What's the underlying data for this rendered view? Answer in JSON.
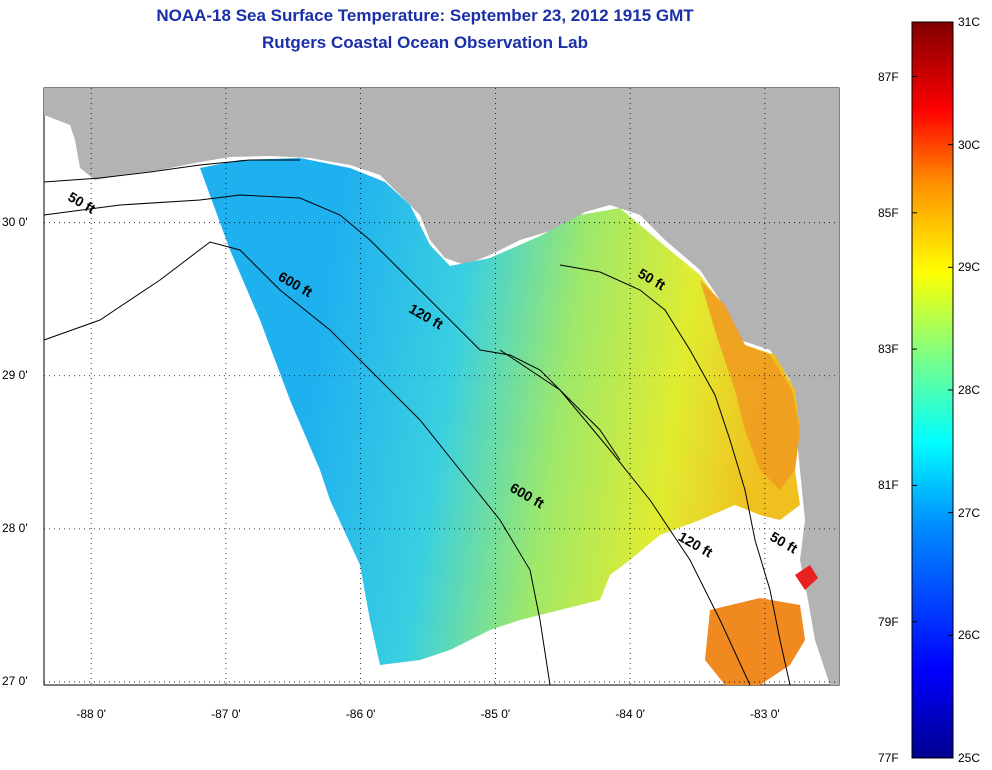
{
  "title": "NOAA-18 Sea Surface Temperature:  September 23, 2012 1915 GMT",
  "subtitle": "Rutgers Coastal Ocean Observation Lab",
  "map": {
    "lon_range": [
      -88.35,
      -82.45
    ],
    "lat_range": [
      26.98,
      30.88
    ],
    "lon_ticks": [
      {
        "value": -88,
        "label": "-88 0'"
      },
      {
        "value": -87,
        "label": "-87 0'"
      },
      {
        "value": -86,
        "label": "-86 0'"
      },
      {
        "value": -85,
        "label": "-85 0'"
      },
      {
        "value": -84,
        "label": "-84 0'"
      },
      {
        "value": -83,
        "label": "-83 0'"
      }
    ],
    "lat_ticks": [
      {
        "value": 30,
        "label": "30 0'"
      },
      {
        "value": 29,
        "label": "29 0'"
      },
      {
        "value": 28,
        "label": "28 0'"
      },
      {
        "value": 27,
        "label": "27 0'"
      }
    ],
    "land_color": "#b3b3b3",
    "no_data_color": "#ffffff",
    "grid": "dotted",
    "isobath_labels": [
      {
        "text": "50 ft",
        "lon": -88.18,
        "lat": 30.15
      },
      {
        "text": "600 ft",
        "lon": -86.62,
        "lat": 29.63
      },
      {
        "text": "120 ft",
        "lon": -85.65,
        "lat": 29.42
      },
      {
        "text": "50 ft",
        "lon": -83.95,
        "lat": 29.65
      },
      {
        "text": "600 ft",
        "lon": -84.9,
        "lat": 28.25
      },
      {
        "text": "120 ft",
        "lon": -83.65,
        "lat": 27.93
      },
      {
        "text": "50 ft",
        "lon": -82.97,
        "lat": 27.93
      }
    ]
  },
  "colorbar": {
    "celsius_labels": [
      "31C",
      "30C",
      "29C",
      "28C",
      "27C",
      "26C",
      "25C"
    ],
    "fahrenheit_labels": [
      "87F",
      "85F",
      "83F",
      "81F",
      "79F",
      "77F"
    ],
    "c_range": [
      25,
      31
    ],
    "colors": [
      "#00008f",
      "#0000ff",
      "#0080ff",
      "#00ffff",
      "#80ff80",
      "#ffff00",
      "#ff8000",
      "#ff0000",
      "#800000"
    ]
  }
}
